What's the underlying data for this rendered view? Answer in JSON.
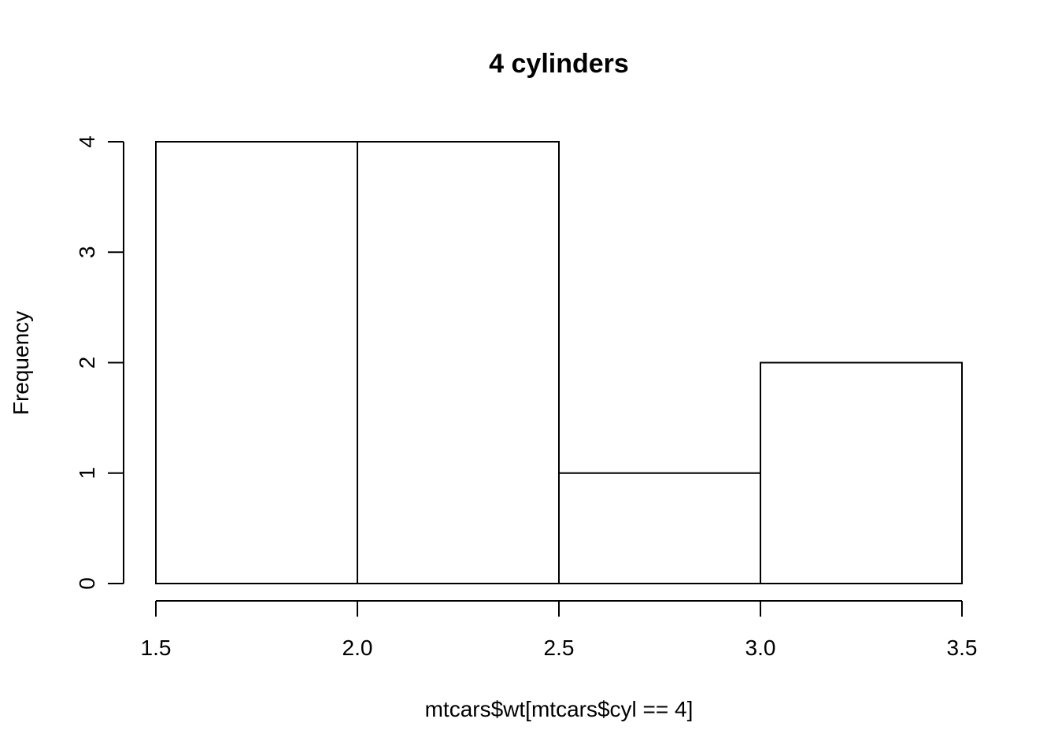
{
  "chart_data": {
    "type": "bar",
    "title": "4 cylinders",
    "xlabel": "mtcars$wt[mtcars$cyl == 4]",
    "ylabel": "Frequency",
    "bins": [
      {
        "start": 1.5,
        "end": 2.0,
        "count": 4
      },
      {
        "start": 2.0,
        "end": 2.5,
        "count": 4
      },
      {
        "start": 2.5,
        "end": 3.0,
        "count": 1
      },
      {
        "start": 3.0,
        "end": 3.5,
        "count": 2
      }
    ],
    "x_ticks": [
      "1.5",
      "2.0",
      "2.5",
      "3.0",
      "3.5"
    ],
    "y_ticks": [
      "0",
      "1",
      "2",
      "3",
      "4"
    ],
    "xlim": [
      1.5,
      3.5
    ],
    "ylim": [
      0,
      4
    ],
    "grid": false,
    "colors": {
      "bar_fill": "#ffffff",
      "bar_stroke": "#000000"
    }
  }
}
